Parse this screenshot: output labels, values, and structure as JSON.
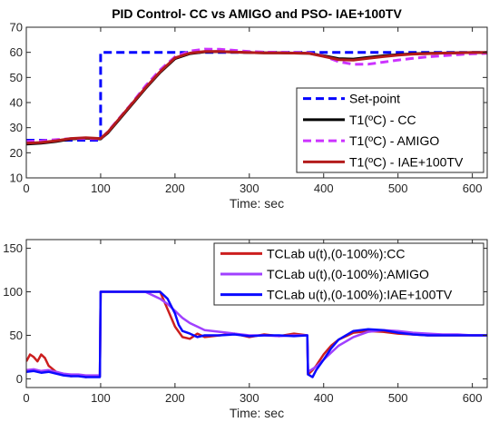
{
  "chart_data": [
    {
      "type": "line",
      "title": "PID Control- CC vs AMIGO and PSO- IAE+100TV",
      "xlabel": "Time: sec",
      "ylabel": "",
      "xlim": [
        0,
        620
      ],
      "ylim": [
        10,
        70
      ],
      "xticks": [
        0,
        100,
        200,
        300,
        400,
        500,
        600
      ],
      "yticks": [
        10,
        20,
        30,
        40,
        50,
        60,
        70
      ],
      "grid": false,
      "legend_position": "bottom-right",
      "series": [
        {
          "name": "Set-point",
          "color": "#0000ff",
          "style": "dashed",
          "x": [
            0,
            100,
            100,
            620
          ],
          "y": [
            25,
            25,
            60,
            60
          ]
        },
        {
          "name": "T1(ºC) - CC",
          "color": "#000000",
          "style": "solid",
          "x": [
            0,
            20,
            40,
            60,
            80,
            100,
            110,
            120,
            140,
            160,
            180,
            200,
            220,
            240,
            260,
            280,
            300,
            320,
            340,
            360,
            380,
            400,
            420,
            440,
            460,
            480,
            500,
            520,
            540,
            560,
            580,
            600,
            620
          ],
          "y": [
            23.5,
            23.8,
            24.5,
            25.5,
            25.8,
            25.5,
            28,
            31.5,
            38.5,
            45.5,
            52,
            57.5,
            59.5,
            60.2,
            60.3,
            60.1,
            59.9,
            59.8,
            59.8,
            59.7,
            59.6,
            58.7,
            57.5,
            57.3,
            58,
            58.6,
            59.1,
            59.4,
            59.6,
            59.7,
            59.8,
            59.9,
            59.9
          ]
        },
        {
          "name": "T1(ºC) - AMIGO",
          "color": "#cc33ff",
          "style": "dashed",
          "x": [
            0,
            20,
            40,
            60,
            80,
            100,
            110,
            120,
            140,
            160,
            180,
            200,
            220,
            240,
            260,
            280,
            300,
            320,
            340,
            360,
            380,
            400,
            420,
            440,
            460,
            480,
            500,
            520,
            540,
            560,
            580,
            600,
            620
          ],
          "y": [
            24.5,
            24.8,
            25.2,
            25.6,
            25.6,
            25.5,
            28.5,
            32,
            39,
            46.5,
            53,
            58.2,
            60.5,
            61.3,
            61.2,
            60.8,
            60.3,
            60.1,
            60,
            59.9,
            59.8,
            58.5,
            56.3,
            55.2,
            55.3,
            56.1,
            56.9,
            57.6,
            58.2,
            58.6,
            59.1,
            59.4,
            59.6
          ]
        },
        {
          "name": "T1(ºC) - IAE+100TV",
          "color": "#b31b1b",
          "style": "solid",
          "x": [
            0,
            20,
            40,
            60,
            80,
            100,
            110,
            120,
            140,
            160,
            180,
            200,
            220,
            240,
            260,
            280,
            300,
            320,
            340,
            360,
            380,
            400,
            420,
            440,
            460,
            480,
            500,
            520,
            540,
            560,
            580,
            600,
            620
          ],
          "y": [
            23.8,
            24.1,
            24.8,
            25.7,
            26,
            25.7,
            28.3,
            31.8,
            38.8,
            45.8,
            52.3,
            57.8,
            59.7,
            60.3,
            60.3,
            60.1,
            59.9,
            59.8,
            59.8,
            59.7,
            59.6,
            58.4,
            57.1,
            56.9,
            57.6,
            58.3,
            58.9,
            59.3,
            59.5,
            59.7,
            59.8,
            59.9,
            59.9
          ]
        }
      ]
    },
    {
      "type": "line",
      "title": "",
      "xlabel": "Time: sec",
      "ylabel": "",
      "xlim": [
        0,
        620
      ],
      "ylim": [
        -10,
        160
      ],
      "xticks": [
        0,
        100,
        200,
        300,
        400,
        500,
        600
      ],
      "yticks": [
        0,
        50,
        100,
        150
      ],
      "grid": false,
      "legend_position": "top-right",
      "series": [
        {
          "name": "TCLab u(t),(0-100%):CC",
          "color": "#cc1f1f",
          "style": "solid",
          "x": [
            0,
            5,
            10,
            15,
            20,
            25,
            30,
            40,
            50,
            60,
            70,
            80,
            90,
            99,
            100,
            101,
            120,
            140,
            160,
            180,
            185,
            195,
            200,
            210,
            220,
            230,
            240,
            260,
            280,
            300,
            320,
            340,
            360,
            378,
            379,
            385,
            390,
            400,
            410,
            420,
            440,
            460,
            480,
            500,
            520,
            540,
            560,
            580,
            600,
            620
          ],
          "y": [
            20,
            28,
            25,
            20,
            28,
            24,
            15,
            8,
            5,
            3,
            4,
            2,
            3,
            3,
            100,
            100,
            100,
            100,
            100,
            100,
            90,
            70,
            60,
            48,
            46,
            52,
            48,
            50,
            52,
            48,
            51,
            49,
            52,
            50,
            5,
            10,
            15,
            28,
            38,
            45,
            53,
            55,
            54,
            52,
            51,
            50,
            50,
            50,
            50,
            50
          ]
        },
        {
          "name": "TCLab u(t),(0-100%):AMIGO",
          "color": "#a040ff",
          "style": "solid",
          "x": [
            0,
            10,
            20,
            30,
            40,
            50,
            60,
            70,
            80,
            90,
            99,
            100,
            101,
            120,
            140,
            160,
            170,
            180,
            190,
            200,
            210,
            220,
            230,
            240,
            260,
            280,
            300,
            320,
            340,
            360,
            378,
            379,
            390,
            400,
            410,
            420,
            440,
            460,
            480,
            500,
            520,
            540,
            560,
            580,
            600,
            620
          ],
          "y": [
            10,
            11,
            9,
            10,
            8,
            6,
            5,
            5,
            4,
            4,
            4,
            100,
            100,
            100,
            100,
            100,
            96,
            92,
            86,
            78,
            70,
            64,
            60,
            56,
            54,
            52,
            50,
            50,
            49,
            50,
            50,
            8,
            14,
            22,
            30,
            38,
            48,
            54,
            56,
            55,
            53,
            52,
            51,
            51,
            50,
            50
          ]
        },
        {
          "name": "TCLab u(t),(0-100%):IAE+100TV",
          "color": "#0a0aff",
          "style": "solid",
          "x": [
            0,
            10,
            20,
            30,
            40,
            50,
            60,
            70,
            80,
            90,
            99,
            100,
            101,
            120,
            140,
            160,
            180,
            190,
            200,
            205,
            210,
            220,
            230,
            240,
            260,
            280,
            300,
            320,
            340,
            360,
            378,
            379,
            385,
            390,
            400,
            410,
            420,
            440,
            460,
            480,
            500,
            520,
            540,
            560,
            580,
            600,
            620
          ],
          "y": [
            8,
            9,
            7,
            8,
            6,
            4,
            3,
            3,
            2,
            2,
            2,
            100,
            100,
            100,
            100,
            100,
            100,
            92,
            75,
            62,
            55,
            52,
            48,
            50,
            50,
            51,
            49,
            50,
            50,
            49,
            50,
            5,
            2,
            10,
            22,
            35,
            45,
            55,
            57,
            56,
            53,
            51,
            50,
            50,
            50,
            50,
            50
          ]
        }
      ]
    }
  ]
}
